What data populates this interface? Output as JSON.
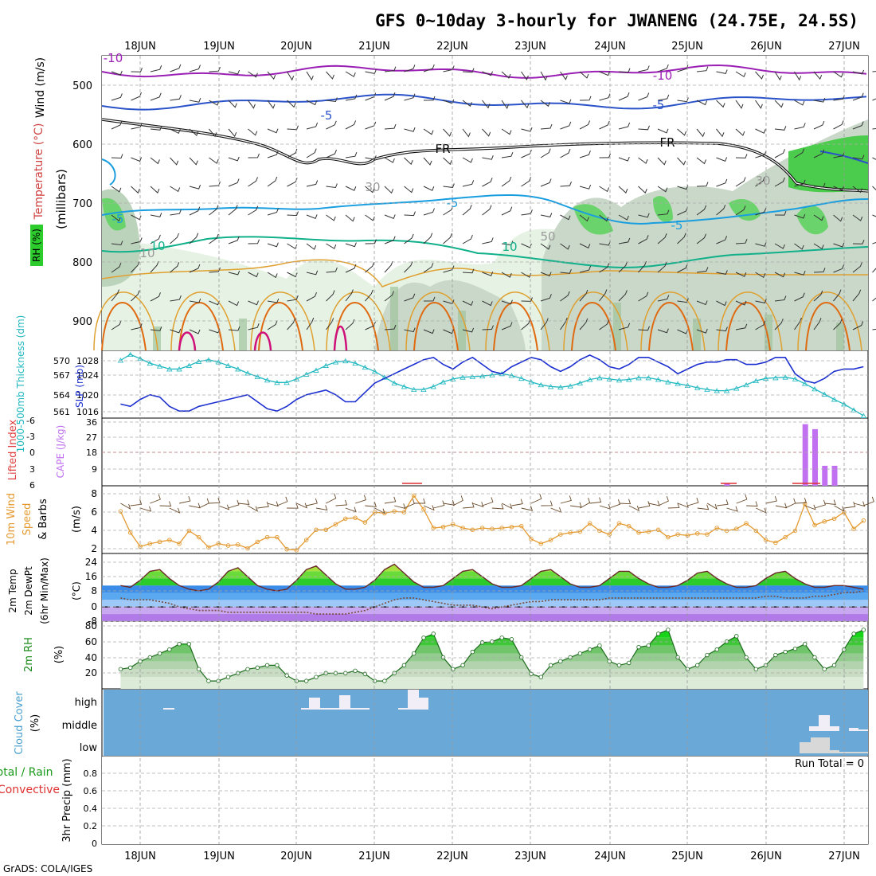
{
  "title": "GFS 0~10day 3-hourly for JWANENG (24.75E, 24.5S)",
  "footer": "GrADS: COLA/IGES",
  "colors": {
    "temp_line_purple": "#9a1fb4",
    "temp_line_blue": "#2a52c9",
    "temp_line_cyan": "#199ee0",
    "temp_line_teal": "#10b08a",
    "temp_line_orange": "#e0a030",
    "temp_line_dkorange": "#e06a10",
    "temp_line_magenta": "#d0107a",
    "slp_line": "#1c2fd0",
    "thickness_line": "#20b8c0",
    "wind_line": "#e49a30",
    "cape_bar": "#c070f0",
    "lifted_index": "#e03030",
    "rh_green": "#10c010",
    "cloud_bg": "#6aa8d8",
    "cloud_fill": "#f2eef8"
  },
  "x_axis": {
    "days": [
      "18JUN",
      "19JUN",
      "20JUN",
      "21JUN",
      "22JUN",
      "23JUN",
      "24JUN",
      "25JUN",
      "26JUN",
      "27JUN"
    ]
  },
  "panels": {
    "upper": {
      "ylabel_parts": [
        "RH (%)",
        "Temperature (°C)",
        "Wind (m/s)",
        "(millibars)"
      ],
      "yticks": [
        "500",
        "600",
        "700",
        "800",
        "900"
      ],
      "contour_labels": [
        "-10",
        "-10",
        "-5",
        "-5",
        "FR",
        "FR",
        "-5",
        "-5",
        "-5",
        "10",
        "10",
        "30",
        "50",
        "10",
        "30"
      ]
    },
    "slp": {
      "ylabel_left": "1000-500mb Thickness (dm)",
      "ylabel_right": "SLP (mb)",
      "yticks_left": [
        "570",
        "567",
        "564",
        "561"
      ],
      "yticks_right": [
        "1028",
        "1024",
        "1020",
        "1016"
      ]
    },
    "cape": {
      "ylabel_left": "Lifted Index",
      "ylabel_right": "CAPE (J/kg)",
      "yticks_left": [
        "-6",
        "-3",
        "0",
        "3",
        "6"
      ],
      "yticks_right": [
        "36",
        "27",
        "18",
        "9"
      ]
    },
    "wind10": {
      "ylabel": [
        "10m Wind",
        "Speed",
        "& Barbs",
        "(m/s)"
      ],
      "yticks": [
        "8",
        "6",
        "4",
        "2"
      ]
    },
    "temp2m": {
      "ylabel": [
        "2m Temp",
        "2m DewPt",
        "(6hr Min/Max)",
        "(°C)"
      ],
      "yticks": [
        "24",
        "16",
        "8",
        "0",
        "-8"
      ]
    },
    "rh2m": {
      "ylabel": [
        "2m RH",
        "(%)"
      ],
      "yticks": [
        "80",
        "60",
        "40",
        "20"
      ]
    },
    "cloud": {
      "ylabel": [
        "Cloud Cover",
        "(%)"
      ],
      "levels": [
        "high",
        "middle",
        "low"
      ]
    },
    "precip": {
      "ylabel": [
        "Total / Rain",
        "Convective",
        "3hr Precip (mm)"
      ],
      "yticks": [
        "0.8",
        "0.6",
        "0.4",
        "0.2",
        "0"
      ],
      "run_total": "Run Total = 0"
    }
  },
  "chart_data": [
    {
      "type": "line",
      "title": "SLP (mb)",
      "x": [
        "17JUN18",
        "17JUN21",
        "18JUN00",
        "18JUN03",
        "18JUN06",
        "18JUN09",
        "18JUN12",
        "18JUN15",
        "18JUN18",
        "18JUN21",
        "19JUN00",
        "19JUN03",
        "19JUN06",
        "19JUN09",
        "19JUN12",
        "19JUN15",
        "19JUN18",
        "19JUN21",
        "20JUN00",
        "20JUN03",
        "20JUN06",
        "20JUN09",
        "20JUN12",
        "20JUN15",
        "20JUN18",
        "20JUN21",
        "21JUN00",
        "21JUN03",
        "21JUN06",
        "21JUN09",
        "21JUN12",
        "21JUN15",
        "21JUN18",
        "21JUN21",
        "22JUN00",
        "22JUN03",
        "22JUN06",
        "22JUN09",
        "22JUN12",
        "22JUN15",
        "22JUN18",
        "22JUN21",
        "23JUN00",
        "23JUN03",
        "23JUN06",
        "23JUN09",
        "23JUN12",
        "23JUN15",
        "23JUN18",
        "23JUN21",
        "24JUN00",
        "24JUN03",
        "24JUN06",
        "24JUN09",
        "24JUN12",
        "24JUN15",
        "24JUN18",
        "24JUN21",
        "25JUN00",
        "25JUN03",
        "25JUN06",
        "25JUN09",
        "25JUN12",
        "25JUN15",
        "25JUN18",
        "25JUN21",
        "26JUN00",
        "26JUN03",
        "26JUN06",
        "26JUN09",
        "26JUN12",
        "26JUN15",
        "26JUN18",
        "26JUN21",
        "27JUN00",
        "27JUN03",
        "27JUN06"
      ],
      "series": [
        {
          "name": "SLP (mb)",
          "values": [
            1017.5,
            1017,
            1018.5,
            1019.5,
            1019,
            1017,
            1016,
            1016,
            1017,
            1017.5,
            1018,
            1018.5,
            1019,
            1019.5,
            1018,
            1016.5,
            1016,
            1017,
            1018.5,
            1019.5,
            1020,
            1020.5,
            1019.5,
            1018,
            1018,
            1020,
            1022,
            1023,
            1024,
            1025,
            1026,
            1027,
            1027.5,
            1026,
            1025,
            1026.5,
            1027.5,
            1026,
            1024.5,
            1024,
            1025.5,
            1026.5,
            1027.5,
            1027,
            1025.5,
            1024.5,
            1025.5,
            1027,
            1028,
            1027,
            1025.5,
            1025,
            1026,
            1027.5,
            1027.5,
            1026.5,
            1025.5,
            1024,
            1025,
            1026,
            1026.5,
            1026.5,
            1027,
            1027,
            1026,
            1026,
            1026.5,
            1027.5,
            1027.5,
            1024,
            1022.5,
            1022,
            1023,
            1024.5,
            1025,
            1025,
            1025.5
          ]
        },
        {
          "name": "1000-500mb Thickness (dm)",
          "values": [
            569.5,
            570.5,
            569.8,
            569,
            568.5,
            568,
            568,
            568.6,
            569.3,
            569.6,
            569.2,
            568.6,
            568,
            567.3,
            566.7,
            566.1,
            565.7,
            565.7,
            566.3,
            567.1,
            567.8,
            568.6,
            569.2,
            569.4,
            569,
            568.3,
            567.6,
            566.6,
            565.6,
            565,
            564.5,
            564.5,
            565,
            565.8,
            566.3,
            566.6,
            566.7,
            566.8,
            567,
            567.2,
            566.9,
            566.4,
            565.8,
            565.3,
            565,
            564.9,
            565.1,
            565.6,
            566.2,
            566.5,
            566.3,
            566.1,
            566.2,
            566.5,
            566.5,
            566.2,
            565.8,
            565.5,
            565.2,
            564.8,
            564.5,
            564.3,
            564.3,
            564.7,
            565.3,
            566,
            566.4,
            566.5,
            566.6,
            566.3,
            565.5,
            564.6,
            563.7,
            562.8,
            562,
            561,
            560
          ]
        }
      ]
    },
    {
      "type": "bar",
      "title": "CAPE (J/kg)",
      "x": [
        "25JUN12",
        "26JUN12",
        "26JUN15",
        "26JUN18",
        "26JUN21"
      ],
      "series": [
        {
          "name": "CAPE",
          "values": [
            1.5,
            37,
            34,
            12,
            12
          ]
        }
      ]
    },
    {
      "type": "line",
      "title": "10m Wind Speed (m/s)",
      "series": [
        {
          "name": "10m Wind Speed",
          "values": [
            6.3,
            4,
            2.5,
            2.8,
            3,
            3.2,
            2.8,
            4.2,
            3.5,
            2.4,
            2.8,
            2.6,
            2.7,
            2.3,
            3,
            3.5,
            3.5,
            2.2,
            2.1,
            3.2,
            4.3,
            4.3,
            4.9,
            5.5,
            5.6,
            5.1,
            6.2,
            6.1,
            6.3,
            6.2,
            8,
            6.5,
            4.5,
            4.6,
            4.9,
            4.5,
            4.3,
            4.5,
            4.4,
            4.5,
            4.6,
            4.7,
            3.3,
            2.8,
            3.2,
            3.8,
            4,
            4.1,
            5,
            4.2,
            3.8,
            5,
            4.7,
            4,
            4.1,
            4.3,
            3.5,
            3.8,
            3.7,
            3.9,
            3.8,
            4.5,
            4.2,
            4.4,
            5,
            4.2,
            3.2,
            2.9,
            3.5,
            4.2,
            7.1,
            4.8,
            5.2,
            5.5,
            6.2,
            4.4,
            5.3
          ]
        }
      ]
    },
    {
      "type": "area",
      "title": "2m Temp / 2m DewPt (°C)",
      "series": [
        {
          "name": "2m Temp",
          "values": [
            12,
            11,
            15,
            20,
            21,
            16,
            12,
            10,
            9,
            10,
            14,
            20,
            22,
            17,
            12,
            10,
            9,
            10,
            15,
            21,
            23,
            18,
            13,
            10,
            10,
            11,
            15,
            21,
            24,
            19,
            14,
            11,
            11,
            12,
            16,
            20,
            21,
            17,
            13,
            11,
            11,
            12,
            16,
            20,
            21,
            17,
            13,
            11,
            11,
            12,
            16,
            20,
            20,
            16,
            13,
            11,
            11,
            12,
            15,
            19,
            20,
            16,
            13,
            11,
            11,
            12,
            16,
            19,
            20,
            16,
            13,
            11,
            11,
            12,
            12,
            11,
            10
          ]
        },
        {
          "name": "2m DewPt",
          "values": [
            5,
            4,
            4,
            4,
            3,
            2,
            0,
            -1,
            -2,
            -2,
            -2,
            -3,
            -3,
            -3,
            -3,
            -3,
            -3,
            -3,
            -3,
            -3,
            -4,
            -4,
            -4,
            -4,
            -3,
            -2,
            0,
            2,
            4,
            5,
            5,
            4,
            3,
            2,
            1,
            1,
            1,
            0,
            -1,
            0,
            1,
            2,
            3,
            3,
            4,
            4,
            4,
            4,
            4,
            4,
            5,
            5,
            5,
            5,
            5,
            5,
            5,
            5,
            5,
            5,
            5,
            5,
            5,
            5,
            5,
            5,
            6,
            6,
            5,
            5,
            5,
            6,
            6,
            7,
            8,
            8,
            9
          ]
        }
      ]
    },
    {
      "type": "area",
      "title": "2m RH (%)",
      "series": [
        {
          "name": "2m RH",
          "values": [
            30,
            32,
            40,
            45,
            50,
            55,
            62,
            62,
            30,
            15,
            15,
            20,
            25,
            30,
            32,
            35,
            35,
            22,
            15,
            15,
            20,
            25,
            25,
            25,
            28,
            24,
            15,
            15,
            25,
            35,
            50,
            70,
            75,
            45,
            30,
            35,
            52,
            64,
            65,
            70,
            68,
            45,
            24,
            20,
            35,
            40,
            45,
            50,
            55,
            60,
            40,
            35,
            38,
            58,
            60,
            75,
            80,
            45,
            30,
            35,
            48,
            55,
            65,
            72,
            45,
            30,
            35,
            48,
            52,
            56,
            62,
            45,
            30,
            35,
            55,
            75,
            80
          ]
        }
      ]
    },
    {
      "type": "bar",
      "title": "Cloud Cover (%)",
      "series": [
        {
          "name": "high",
          "values": [
            2,
            0,
            0,
            2,
            13,
            2,
            13,
            2,
            0,
            0,
            0,
            2,
            2,
            25,
            12,
            0,
            0,
            0,
            0,
            0,
            0,
            0,
            0,
            0,
            0,
            0
          ]
        },
        {
          "name": "middle",
          "values": [
            0,
            0,
            0,
            0,
            0,
            0,
            0,
            0,
            0,
            0,
            0,
            0,
            0,
            0,
            0,
            0,
            0,
            0,
            0,
            0,
            0,
            4,
            16,
            4,
            3,
            4
          ]
        },
        {
          "name": "low",
          "values": [
            0,
            0,
            0,
            0,
            0,
            0,
            0,
            0,
            0,
            0,
            0,
            0,
            0,
            0,
            0,
            0,
            0,
            0,
            0,
            0,
            0,
            10,
            16,
            2,
            2,
            2
          ]
        }
      ]
    },
    {
      "type": "bar",
      "title": "3hr Precip (mm)",
      "ylim": [
        0,
        0.9
      ],
      "series": [
        {
          "name": "Total / Rain",
          "values": []
        }
      ]
    }
  ]
}
